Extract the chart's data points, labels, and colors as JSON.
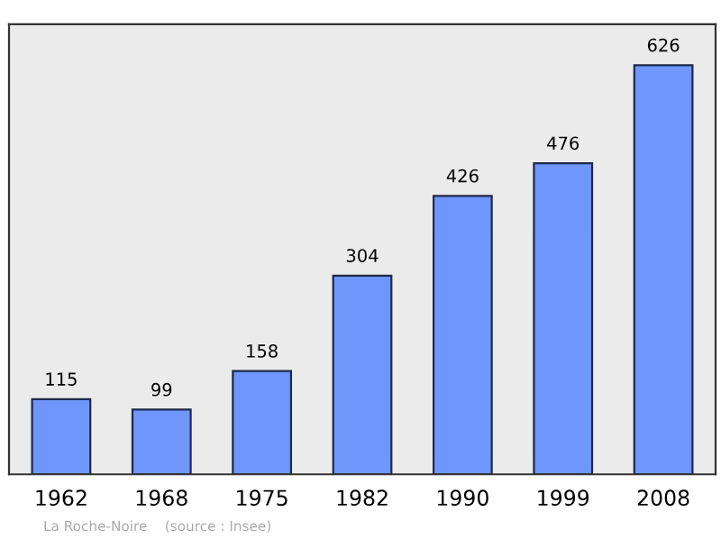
{
  "chart_data": {
    "type": "bar",
    "categories": [
      "1962",
      "1968",
      "1975",
      "1982",
      "1990",
      "1999",
      "2008"
    ],
    "values": [
      115,
      99,
      158,
      304,
      426,
      476,
      626
    ],
    "color": "#6f96fb",
    "data_labels": true,
    "grid": false,
    "annotations": [
      "La Roche-Noire    (source : Insee)"
    ]
  }
}
